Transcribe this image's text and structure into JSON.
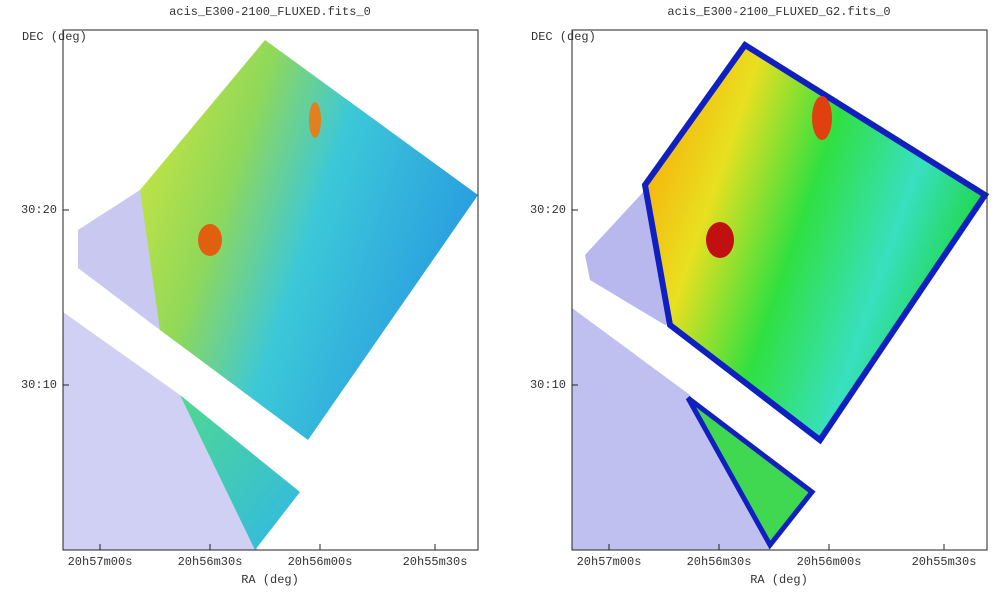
{
  "panels": [
    {
      "title": "acis_E300-2100_FLUXED.fits_0",
      "y_label": "DEC (deg)",
      "x_label": "RA (deg)",
      "y_ticks": [
        "30:20",
        "30:10"
      ],
      "x_ticks": [
        "20h57m00s",
        "20h56m30s",
        "20h56m00s",
        "20h55m30s"
      ]
    },
    {
      "title": "acis_E300-2100_FLUXED_G2.fits_0",
      "y_label": "DEC (deg)",
      "x_label": "RA (deg)",
      "y_ticks": [
        "30:20",
        "30:10"
      ],
      "x_ticks": [
        "20h57m00s",
        "20h56m30s",
        "20h56m00s",
        "20h55m30s"
      ]
    }
  ]
}
